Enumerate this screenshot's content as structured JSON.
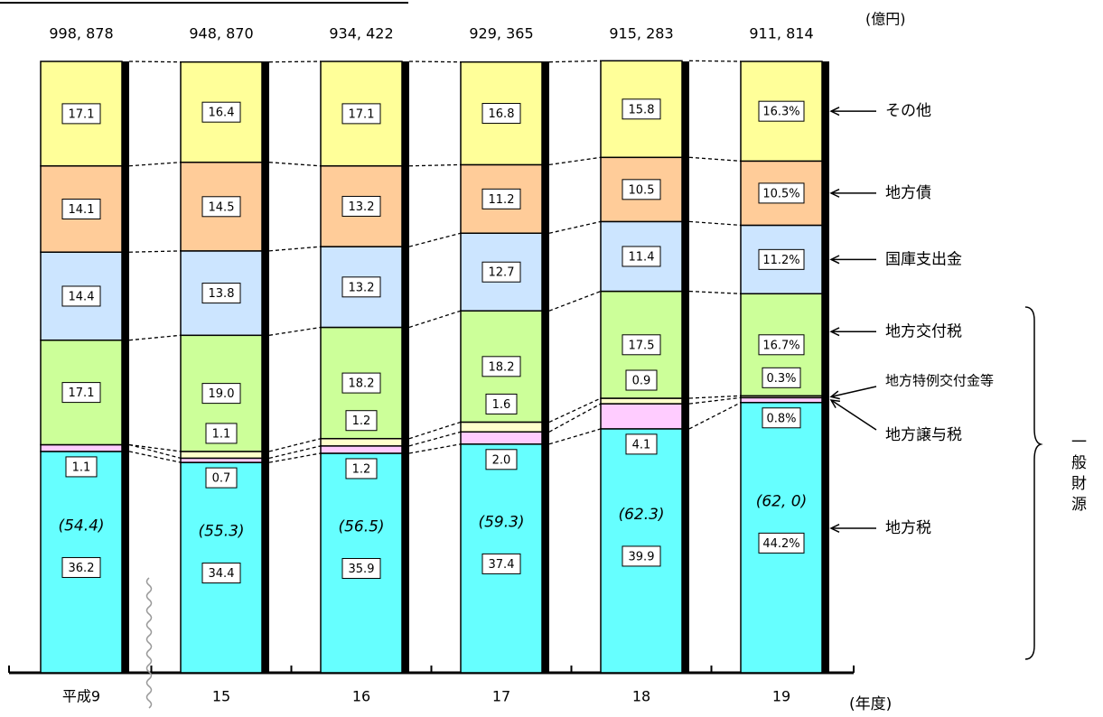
{
  "chart_data": {
    "type": "stacked_bar_100",
    "unit_label": "(億円)",
    "x_axis_label": "(年度)",
    "categories": [
      "平成9",
      "15",
      "16",
      "17",
      "18",
      "19"
    ],
    "total_labels": [
      "998, 878",
      "948, 870",
      "934, 422",
      "929, 365",
      "915, 283",
      "911, 814"
    ],
    "general_revenue_labels": [
      "(54.4)",
      "(55.3)",
      "(56.5)",
      "(59.3)",
      "(62.3)",
      "(62, 0)"
    ],
    "general_revenue_title": "一般財源",
    "ylim": [
      0,
      100
    ],
    "series": [
      {
        "name": "地方税",
        "color": "#66ffff",
        "values": [
          36.2,
          34.4,
          35.9,
          37.4,
          39.9,
          44.2
        ],
        "value_labels": [
          "36.2",
          "34.4",
          "35.9",
          "37.4",
          "39.9",
          "44.2%"
        ]
      },
      {
        "name": "地方譲与税",
        "color": "#ffccff",
        "values": [
          1.1,
          0.7,
          1.2,
          2.0,
          4.1,
          0.8
        ],
        "value_labels": [
          "1.1",
          "0.7",
          "1.2",
          "2.0",
          "4.1",
          "0.8%"
        ]
      },
      {
        "name": "地方特例交付金等",
        "color": "#ffffcc",
        "values": [
          null,
          1.1,
          1.2,
          1.6,
          0.9,
          0.3
        ],
        "value_labels": [
          null,
          "1.1",
          "1.2",
          "1.6",
          "0.9",
          "0.3%"
        ]
      },
      {
        "name": "地方交付税",
        "color": "#ccff99",
        "values": [
          17.1,
          19.0,
          18.2,
          18.2,
          17.5,
          16.7
        ],
        "value_labels": [
          "17.1",
          "19.0",
          "18.2",
          "18.2",
          "17.5",
          "16.7%"
        ]
      },
      {
        "name": "国庫支出金",
        "color": "#cce5ff",
        "values": [
          14.4,
          13.8,
          13.2,
          12.7,
          11.4,
          11.2
        ],
        "value_labels": [
          "14.4",
          "13.8",
          "13.2",
          "12.7",
          "11.4",
          "11.2%"
        ]
      },
      {
        "name": "地方債",
        "color": "#ffcc99",
        "values": [
          14.1,
          14.5,
          13.2,
          11.2,
          10.5,
          10.5
        ],
        "value_labels": [
          "14.1",
          "14.5",
          "13.2",
          "11.2",
          "10.5",
          "10.5%"
        ]
      },
      {
        "name": "その他",
        "color": "#ffff99",
        "values": [
          17.1,
          16.4,
          17.1,
          16.8,
          15.8,
          16.3
        ],
        "value_labels": [
          "17.1",
          "16.4",
          "17.1",
          "16.8",
          "15.8",
          "16.3%"
        ]
      }
    ]
  }
}
